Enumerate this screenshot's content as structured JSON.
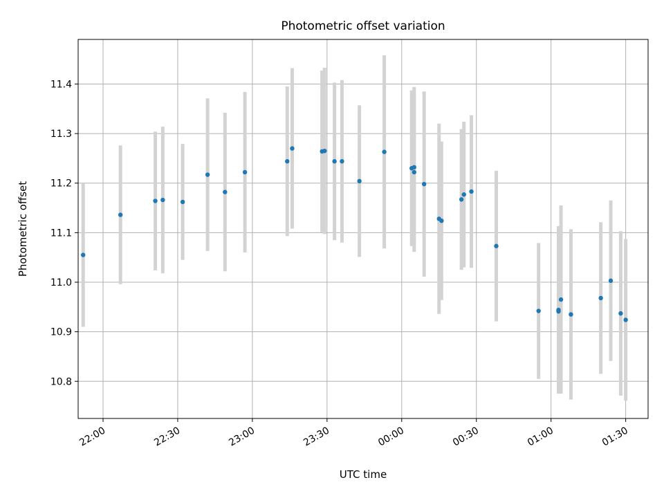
{
  "chart_data": {
    "type": "scatter",
    "title": "Photometric offset variation",
    "xlabel": "UTC time",
    "ylabel": "Photometric offset",
    "xlim": [
      "21:50",
      "01:39"
    ],
    "ylim": [
      10.725,
      11.49
    ],
    "grid": true,
    "x_ticks": [
      "22:00",
      "22:30",
      "23:00",
      "23:30",
      "00:00",
      "00:30",
      "01:00",
      "01:30"
    ],
    "y_ticks": [
      "10.8",
      "10.9",
      "11.0",
      "11.1",
      "11.2",
      "11.3",
      "11.4"
    ],
    "marker_color": "#1f77b4",
    "errorbar_color": "#d3d3d3",
    "points": [
      {
        "x": "21:52",
        "y": 11.055,
        "err": 0.145
      },
      {
        "x": "22:07",
        "y": 11.136,
        "err": 0.14
      },
      {
        "x": "22:21",
        "y": 11.164,
        "err": 0.14
      },
      {
        "x": "22:24",
        "y": 11.166,
        "err": 0.148
      },
      {
        "x": "22:32",
        "y": 11.162,
        "err": 0.117
      },
      {
        "x": "22:42",
        "y": 11.217,
        "err": 0.154
      },
      {
        "x": "22:49",
        "y": 11.182,
        "err": 0.16
      },
      {
        "x": "22:57",
        "y": 11.222,
        "err": 0.162
      },
      {
        "x": "23:14",
        "y": 11.244,
        "err": 0.151
      },
      {
        "x": "23:16",
        "y": 11.27,
        "err": 0.162
      },
      {
        "x": "23:28",
        "y": 11.264,
        "err": 0.163
      },
      {
        "x": "23:29",
        "y": 11.265,
        "err": 0.168
      },
      {
        "x": "23:33",
        "y": 11.244,
        "err": 0.159
      },
      {
        "x": "23:36",
        "y": 11.244,
        "err": 0.164
      },
      {
        "x": "23:43",
        "y": 11.204,
        "err": 0.153
      },
      {
        "x": "23:53",
        "y": 11.263,
        "err": 0.195
      },
      {
        "x": "00:04",
        "y": 11.23,
        "err": 0.157
      },
      {
        "x": "00:05",
        "y": 11.232,
        "err": 0.162
      },
      {
        "x": "00:05",
        "y": 11.222,
        "err": 0.161
      },
      {
        "x": "00:09",
        "y": 11.198,
        "err": 0.187
      },
      {
        "x": "00:15",
        "y": 11.128,
        "err": 0.192
      },
      {
        "x": "00:16",
        "y": 11.124,
        "err": 0.16
      },
      {
        "x": "00:24",
        "y": 11.167,
        "err": 0.142
      },
      {
        "x": "00:25",
        "y": 11.177,
        "err": 0.147
      },
      {
        "x": "00:28",
        "y": 11.183,
        "err": 0.154
      },
      {
        "x": "00:38",
        "y": 11.073,
        "err": 0.152
      },
      {
        "x": "00:55",
        "y": 10.942,
        "err": 0.137
      },
      {
        "x": "01:03",
        "y": 10.941,
        "err": 0.141
      },
      {
        "x": "01:03",
        "y": 10.944,
        "err": 0.169
      },
      {
        "x": "01:04",
        "y": 10.965,
        "err": 0.19
      },
      {
        "x": "01:08",
        "y": 10.935,
        "err": 0.172
      },
      {
        "x": "01:20",
        "y": 10.968,
        "err": 0.153
      },
      {
        "x": "01:24",
        "y": 11.003,
        "err": 0.162
      },
      {
        "x": "01:28",
        "y": 10.937,
        "err": 0.166
      },
      {
        "x": "01:30",
        "y": 10.924,
        "err": 0.163
      }
    ]
  }
}
